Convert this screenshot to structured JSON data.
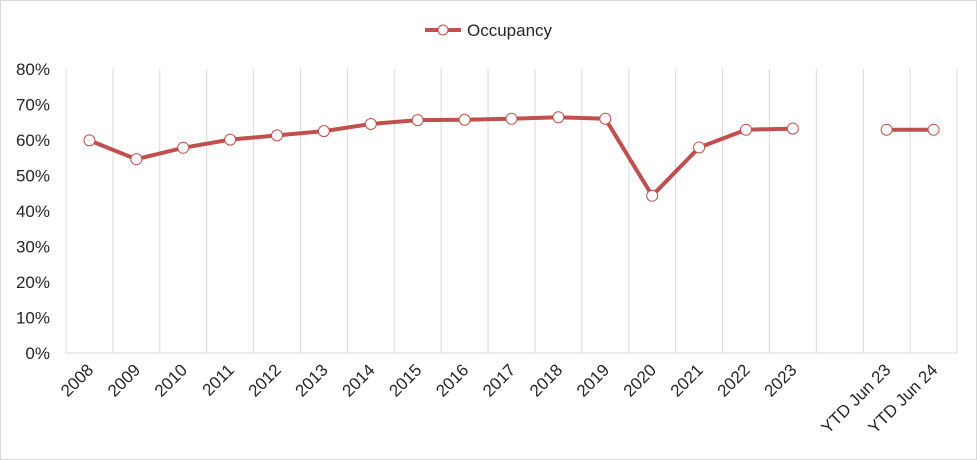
{
  "chart_data": {
    "type": "line",
    "title": "",
    "xlabel": "",
    "ylabel": "",
    "categories": [
      "2008",
      "2009",
      "2010",
      "2011",
      "2012",
      "2013",
      "2014",
      "2015",
      "2016",
      "2017",
      "2018",
      "2019",
      "2020",
      "2021",
      "2022",
      "2023",
      "",
      "YTD Jun 23",
      "YTD Jun 24"
    ],
    "series": [
      {
        "name": "Occupancy",
        "values": [
          0.599,
          0.546,
          0.578,
          0.601,
          0.613,
          0.625,
          0.645,
          0.656,
          0.657,
          0.66,
          0.664,
          0.66,
          0.443,
          0.579,
          0.629,
          0.632,
          null,
          0.629,
          0.629
        ]
      }
    ],
    "ylim": [
      0,
      0.8
    ],
    "y_ticks": [
      "0%",
      "10%",
      "20%",
      "30%",
      "40%",
      "50%",
      "60%",
      "70%",
      "80%"
    ],
    "grid": "vertical",
    "legend": "top-center",
    "colors": {
      "line": "#c0504d",
      "marker_fill": "#ffffff",
      "grid": "#d9d9d9",
      "axis": "#d9d9d9",
      "text": "#262626"
    }
  }
}
